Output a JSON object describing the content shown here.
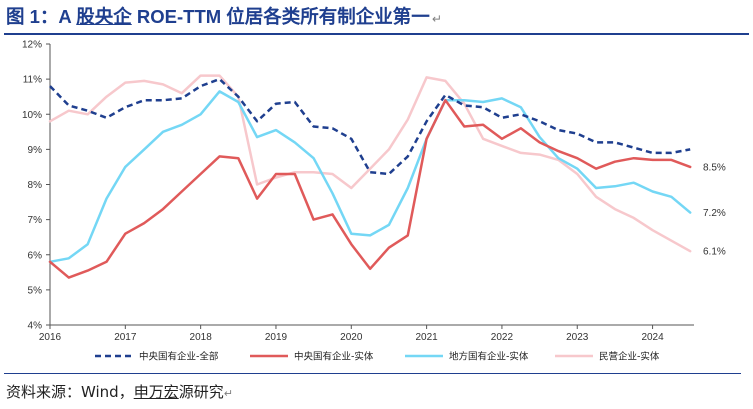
{
  "header": {
    "fig_label": "图 1：A ",
    "title_underlined": "股央企",
    "title_rest": " ROE-TTM 位居各类所有制企业第一",
    "para_mark": "↵"
  },
  "footer": {
    "source_prefix": "资料来源：Wind，",
    "source_underlined": "申万宏",
    "source_rest": "源研究",
    "para_mark": "↵"
  },
  "colors": {
    "central_all": "#1f3f8f",
    "central_entity": "#e05a5a",
    "local_entity": "#74d7f5",
    "private_entity": "#f7c8cc",
    "axis": "#555555",
    "grid": "#d0d0d0",
    "title": "#1f3f8f"
  },
  "chart_data": {
    "type": "line",
    "title": "",
    "xlabel": "",
    "ylabel": "",
    "xlim": [
      2016,
      2024.55
    ],
    "ylim": [
      4,
      12
    ],
    "x_ticks": [
      2016,
      2017,
      2018,
      2019,
      2020,
      2021,
      2022,
      2023,
      2024
    ],
    "y_ticks": [
      4,
      5,
      6,
      7,
      8,
      9,
      10,
      11,
      12
    ],
    "y_tick_labels": [
      "4%",
      "5%",
      "6%",
      "7%",
      "8%",
      "9%",
      "10%",
      "11%",
      "12%"
    ],
    "grid": false,
    "legend_position": "bottom",
    "series": [
      {
        "name": "中央国有企业-全部",
        "style": "dashed",
        "color_key": "central_all",
        "points": [
          [
            2016.0,
            10.8
          ],
          [
            2016.25,
            10.25
          ],
          [
            2016.5,
            10.1
          ],
          [
            2016.75,
            9.9
          ],
          [
            2017.0,
            10.2
          ],
          [
            2017.25,
            10.4
          ],
          [
            2017.5,
            10.4
          ],
          [
            2017.75,
            10.45
          ],
          [
            2018.0,
            10.8
          ],
          [
            2018.25,
            11.0
          ],
          [
            2018.5,
            10.5
          ],
          [
            2018.75,
            9.8
          ],
          [
            2019.0,
            10.3
          ],
          [
            2019.25,
            10.35
          ],
          [
            2019.5,
            9.65
          ],
          [
            2019.75,
            9.6
          ],
          [
            2020.0,
            9.3
          ],
          [
            2020.25,
            8.35
          ],
          [
            2020.5,
            8.3
          ],
          [
            2020.75,
            8.8
          ],
          [
            2021.0,
            9.8
          ],
          [
            2021.25,
            10.55
          ],
          [
            2021.5,
            10.25
          ],
          [
            2021.75,
            10.2
          ],
          [
            2022.0,
            9.9
          ],
          [
            2022.25,
            10.0
          ],
          [
            2022.5,
            9.8
          ],
          [
            2022.75,
            9.55
          ],
          [
            2023.0,
            9.45
          ],
          [
            2023.25,
            9.2
          ],
          [
            2023.5,
            9.2
          ],
          [
            2023.75,
            9.05
          ],
          [
            2024.0,
            8.9
          ],
          [
            2024.25,
            8.9
          ],
          [
            2024.5,
            9.0
          ]
        ]
      },
      {
        "name": "中央国有企业-实体",
        "style": "solid",
        "color_key": "central_entity",
        "end_label": "8.5%",
        "points": [
          [
            2016.0,
            5.8
          ],
          [
            2016.25,
            5.35
          ],
          [
            2016.5,
            5.55
          ],
          [
            2016.75,
            5.8
          ],
          [
            2017.0,
            6.6
          ],
          [
            2017.25,
            6.9
          ],
          [
            2017.5,
            7.3
          ],
          [
            2017.75,
            7.8
          ],
          [
            2018.0,
            8.3
          ],
          [
            2018.25,
            8.8
          ],
          [
            2018.5,
            8.75
          ],
          [
            2018.75,
            7.6
          ],
          [
            2019.0,
            8.3
          ],
          [
            2019.25,
            8.3
          ],
          [
            2019.5,
            7.0
          ],
          [
            2019.75,
            7.15
          ],
          [
            2020.0,
            6.3
          ],
          [
            2020.25,
            5.6
          ],
          [
            2020.5,
            6.2
          ],
          [
            2020.75,
            6.55
          ],
          [
            2021.0,
            9.3
          ],
          [
            2021.25,
            10.4
          ],
          [
            2021.5,
            9.65
          ],
          [
            2021.75,
            9.7
          ],
          [
            2022.0,
            9.3
          ],
          [
            2022.25,
            9.6
          ],
          [
            2022.5,
            9.2
          ],
          [
            2022.75,
            8.95
          ],
          [
            2023.0,
            8.75
          ],
          [
            2023.25,
            8.45
          ],
          [
            2023.5,
            8.65
          ],
          [
            2023.75,
            8.75
          ],
          [
            2024.0,
            8.7
          ],
          [
            2024.25,
            8.7
          ],
          [
            2024.5,
            8.5
          ]
        ]
      },
      {
        "name": "地方国有企业-实体",
        "style": "solid",
        "color_key": "local_entity",
        "end_label": "7.2%",
        "points": [
          [
            2016.0,
            5.8
          ],
          [
            2016.25,
            5.9
          ],
          [
            2016.5,
            6.3
          ],
          [
            2016.75,
            7.6
          ],
          [
            2017.0,
            8.5
          ],
          [
            2017.25,
            9.0
          ],
          [
            2017.5,
            9.5
          ],
          [
            2017.75,
            9.7
          ],
          [
            2018.0,
            10.0
          ],
          [
            2018.25,
            10.65
          ],
          [
            2018.5,
            10.35
          ],
          [
            2018.75,
            9.35
          ],
          [
            2019.0,
            9.55
          ],
          [
            2019.25,
            9.2
          ],
          [
            2019.5,
            8.75
          ],
          [
            2019.75,
            7.75
          ],
          [
            2020.0,
            6.6
          ],
          [
            2020.25,
            6.55
          ],
          [
            2020.5,
            6.85
          ],
          [
            2020.75,
            7.9
          ],
          [
            2021.0,
            9.3
          ],
          [
            2021.25,
            10.4
          ],
          [
            2021.5,
            10.4
          ],
          [
            2021.75,
            10.35
          ],
          [
            2022.0,
            10.45
          ],
          [
            2022.25,
            10.2
          ],
          [
            2022.5,
            9.35
          ],
          [
            2022.75,
            8.75
          ],
          [
            2023.0,
            8.45
          ],
          [
            2023.25,
            7.9
          ],
          [
            2023.5,
            7.95
          ],
          [
            2023.75,
            8.05
          ],
          [
            2024.0,
            7.8
          ],
          [
            2024.25,
            7.65
          ],
          [
            2024.5,
            7.2
          ]
        ]
      },
      {
        "name": "民营企业-实体",
        "style": "solid",
        "color_key": "private_entity",
        "end_label": "6.1%",
        "points": [
          [
            2016.0,
            9.8
          ],
          [
            2016.25,
            10.1
          ],
          [
            2016.5,
            10.0
          ],
          [
            2016.75,
            10.5
          ],
          [
            2017.0,
            10.9
          ],
          [
            2017.25,
            10.95
          ],
          [
            2017.5,
            10.85
          ],
          [
            2017.75,
            10.6
          ],
          [
            2018.0,
            11.1
          ],
          [
            2018.25,
            11.1
          ],
          [
            2018.5,
            10.5
          ],
          [
            2018.75,
            8.0
          ],
          [
            2019.0,
            8.2
          ],
          [
            2019.25,
            8.35
          ],
          [
            2019.5,
            8.35
          ],
          [
            2019.75,
            8.3
          ],
          [
            2020.0,
            7.9
          ],
          [
            2020.25,
            8.45
          ],
          [
            2020.5,
            9.0
          ],
          [
            2020.75,
            9.85
          ],
          [
            2021.0,
            11.05
          ],
          [
            2021.25,
            10.95
          ],
          [
            2021.5,
            10.3
          ],
          [
            2021.75,
            9.3
          ],
          [
            2022.0,
            9.1
          ],
          [
            2022.25,
            8.9
          ],
          [
            2022.5,
            8.85
          ],
          [
            2022.75,
            8.7
          ],
          [
            2023.0,
            8.3
          ],
          [
            2023.25,
            7.65
          ],
          [
            2023.5,
            7.3
          ],
          [
            2023.75,
            7.05
          ],
          [
            2024.0,
            6.7
          ],
          [
            2024.25,
            6.4
          ],
          [
            2024.5,
            6.1
          ]
        ]
      }
    ]
  }
}
